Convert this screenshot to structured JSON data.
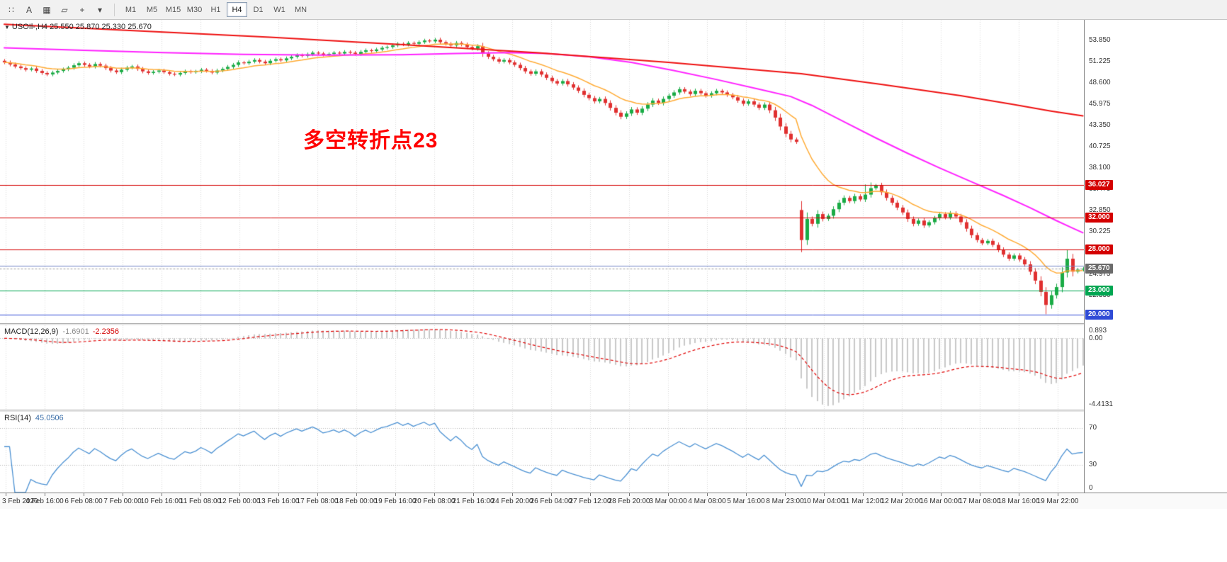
{
  "toolbar": {
    "tools": [
      {
        "id": "chart-grip",
        "glyph": "∷"
      },
      {
        "id": "text-tool",
        "glyph": "A"
      },
      {
        "id": "shapes-tool",
        "glyph": "▦"
      },
      {
        "id": "objects-tool",
        "glyph": "▱"
      },
      {
        "id": "crosshair-tool",
        "glyph": "+"
      },
      {
        "id": "more-dropdown",
        "glyph": "▾"
      }
    ],
    "timeframes": [
      "M1",
      "M5",
      "M15",
      "M30",
      "H1",
      "H4",
      "D1",
      "W1",
      "MN"
    ],
    "active_timeframe": "H4"
  },
  "chart": {
    "symbol_info": "USOIl-,H4 25.550 25.870 25.330 25.670",
    "symbol_dropdown_icon": "▼",
    "annotation": "多空转折点23",
    "current_price": "25.670",
    "colors": {
      "bull": "#1aab45",
      "bear": "#e03030",
      "ma_red": "#ee1111",
      "ma_magenta": "#ff22ff",
      "ma_orange": "#ffaa33",
      "hline_red": "#d40000",
      "hline_green": "#00a651",
      "hline_blue": "#2f4bd6",
      "hline_lightblue": "#7488c8",
      "current_line": "#999999",
      "tag_current_bg": "#6b6b6b",
      "macd_hist": "#c8c8c8",
      "macd_signal": "#e00000",
      "rsi_line": "#4a90d2",
      "grid": "#d9d9d9",
      "level_dotted": "#b8b8b8"
    },
    "price_axis_labels": [
      "53.850",
      "51.225",
      "48.600",
      "45.975",
      "43.350",
      "40.725",
      "38.100",
      "35.475",
      "32.850",
      "30.225",
      "27.600",
      "24.975",
      "22.350",
      "19.725"
    ],
    "price_tags": [
      {
        "text": "36.027",
        "value": 36.027,
        "color": "#d40000"
      },
      {
        "text": "32.000",
        "value": 32.0,
        "color": "#d40000"
      },
      {
        "text": "28.000",
        "value": 28.0,
        "color": "#d40000"
      },
      {
        "text": "25.670",
        "value": 25.67,
        "color": "#6b6b6b"
      },
      {
        "text": "23.000",
        "value": 23.0,
        "color": "#00a651"
      },
      {
        "text": "20.000",
        "value": 20.0,
        "color": "#2f4bd6"
      }
    ],
    "hlines": [
      {
        "price": 36.027,
        "color": "#d40000",
        "style": "solid"
      },
      {
        "price": 32.0,
        "color": "#d40000",
        "style": "solid"
      },
      {
        "price": 28.0,
        "color": "#d40000",
        "style": "solid"
      },
      {
        "price": 26.0,
        "color": "#7488c8",
        "style": "solid"
      },
      {
        "price": 23.0,
        "color": "#00a651",
        "style": "solid"
      },
      {
        "price": 20.0,
        "color": "#2f4bd6",
        "style": "solid"
      },
      {
        "price": 25.67,
        "color": "#999999",
        "style": "dot"
      }
    ],
    "time_labels": [
      "3 Feb 2020",
      "4 Feb 16:00",
      "6 Feb 08:00",
      "7 Feb 00:00",
      "10 Feb 16:00",
      "11 Feb 08:00",
      "12 Feb 00:00",
      "13 Feb 16:00",
      "17 Feb 08:00",
      "18 Feb 00:00",
      "19 Feb 16:00",
      "20 Feb 08:00",
      "21 Feb 16:00",
      "24 Feb 20:00",
      "26 Feb 04:00",
      "27 Feb 12:00",
      "28 Feb 20:00",
      "3 Mar 00:00",
      "4 Mar 08:00",
      "5 Mar 16:00",
      "8 Mar 23:00",
      "10 Mar 04:00",
      "11 Mar 12:00",
      "12 Mar 20:00",
      "16 Mar 00:00",
      "17 Mar 08:00",
      "18 Mar 16:00",
      "19 Mar 22:00"
    ]
  },
  "chart_data": {
    "type": "candlestick",
    "symbol": "USOIL",
    "timeframe": "H4",
    "ohlc_current": {
      "open": "25.550",
      "high": "25.870",
      "low": "25.330",
      "close": "25.670"
    },
    "price_range": {
      "max": 56.35,
      "min": 18.95
    },
    "first_open": 51.3,
    "closes": [
      51.1,
      50.85,
      50.6,
      50.4,
      50.2,
      50.35,
      50.05,
      49.8,
      49.62,
      49.85,
      50.05,
      50.25,
      50.45,
      50.75,
      51.0,
      50.8,
      50.6,
      50.9,
      50.7,
      50.4,
      50.1,
      49.9,
      50.2,
      50.45,
      50.6,
      50.3,
      50.0,
      49.8,
      49.95,
      50.1,
      49.9,
      49.7,
      49.6,
      49.8,
      50.0,
      49.9,
      50.0,
      50.2,
      50.05,
      49.85,
      50.1,
      50.3,
      50.55,
      50.8,
      51.1,
      51.0,
      51.2,
      51.4,
      51.2,
      51.0,
      51.3,
      51.5,
      51.35,
      51.6,
      51.8,
      52.0,
      51.9,
      52.1,
      52.3,
      52.2,
      52.05,
      52.15,
      52.3,
      52.2,
      52.4,
      52.3,
      52.15,
      52.4,
      52.6,
      52.5,
      52.7,
      52.9,
      53.0,
      53.2,
      53.4,
      53.3,
      53.5,
      53.4,
      53.6,
      53.8,
      53.7,
      53.9,
      53.6,
      53.4,
      53.2,
      53.5,
      53.3,
      53.0,
      52.8,
      53.1,
      52.2,
      51.8,
      51.5,
      51.2,
      51.4,
      51.1,
      50.8,
      50.4,
      50.0,
      49.7,
      50.0,
      49.6,
      49.2,
      48.8,
      48.5,
      48.8,
      48.4,
      48.0,
      47.6,
      47.1,
      46.7,
      46.3,
      46.6,
      46.1,
      45.5,
      44.9,
      44.4,
      44.8,
      45.3,
      44.9,
      45.4,
      45.9,
      46.4,
      46.1,
      46.6,
      47.0,
      47.4,
      47.8,
      47.5,
      47.2,
      47.6,
      47.3,
      47.0,
      47.3,
      47.6,
      47.4,
      47.1,
      46.8,
      46.4,
      46.0,
      46.3,
      45.9,
      45.5,
      45.9,
      45.2,
      44.3,
      43.2,
      42.3,
      41.6,
      41.3,
      29.2,
      31.8,
      31.2,
      32.4,
      31.8,
      32.2,
      33.0,
      33.8,
      34.4,
      34.0,
      34.6,
      34.2,
      34.8,
      35.6,
      35.9,
      35.1,
      34.4,
      33.8,
      33.2,
      32.6,
      31.8,
      31.2,
      31.6,
      31.0,
      31.4,
      31.9,
      32.4,
      32.0,
      32.5,
      32.1,
      31.4,
      30.6,
      29.8,
      29.2,
      28.8,
      29.1,
      28.6,
      28.0,
      27.4,
      26.9,
      27.3,
      26.8,
      26.2,
      25.3,
      24.2,
      22.8,
      21.2,
      22.4,
      23.4,
      25.2,
      26.9,
      25.3,
      25.55,
      25.67
    ],
    "overrides": {
      "150": {
        "o": 32.9,
        "h": 34.0,
        "l": 27.7
      },
      "151": {
        "h": 32.6,
        "l": 28.6
      },
      "162": {
        "h": 36.05
      },
      "163": {
        "h": 36.3
      },
      "196": {
        "l": 20.06
      },
      "200": {
        "h": 28.0
      },
      "203": {
        "o": 25.55,
        "h": 25.87,
        "l": 25.33,
        "c": 25.67
      }
    },
    "ma_red_keypoints": [
      [
        0,
        55.8
      ],
      [
        25,
        55.0
      ],
      [
        50,
        54.2
      ],
      [
        75,
        53.3
      ],
      [
        100,
        52.3
      ],
      [
        125,
        51.1
      ],
      [
        150,
        49.7
      ],
      [
        165,
        48.4
      ],
      [
        180,
        47.0
      ],
      [
        190,
        45.9
      ],
      [
        197,
        45.1
      ],
      [
        203,
        44.5
      ]
    ],
    "ma_magenta_keypoints": [
      [
        0,
        52.9
      ],
      [
        15,
        52.6
      ],
      [
        30,
        52.3
      ],
      [
        45,
        52.1
      ],
      [
        60,
        52.0
      ],
      [
        75,
        52.05
      ],
      [
        85,
        52.2
      ],
      [
        95,
        52.3
      ],
      [
        102,
        52.2
      ],
      [
        110,
        51.8
      ],
      [
        118,
        51.1
      ],
      [
        126,
        50.1
      ],
      [
        134,
        49.0
      ],
      [
        142,
        47.8
      ],
      [
        148,
        46.9
      ],
      [
        152,
        45.8
      ],
      [
        158,
        43.8
      ],
      [
        164,
        41.8
      ],
      [
        170,
        39.9
      ],
      [
        176,
        38.1
      ],
      [
        182,
        36.4
      ],
      [
        188,
        34.7
      ],
      [
        193,
        33.2
      ],
      [
        198,
        31.6
      ],
      [
        201,
        30.7
      ],
      [
        203,
        30.1
      ]
    ],
    "ma_orange": {
      "type": "ema",
      "period": 13
    },
    "macd": {
      "name": "MACD(12,26,9)",
      "main_value": "-1.6901",
      "signal_value": "-2.2356",
      "scale_top_label": "0.893",
      "scale_zero_label": "0.00",
      "scale_bottom_label": "-4.4131"
    },
    "rsi": {
      "name": "RSI(14)",
      "value": "45.0506",
      "levels": [
        70,
        30
      ],
      "scale_labels": [
        {
          "text": "70",
          "value": 70
        },
        {
          "text": "30",
          "value": 30
        },
        {
          "text": "0",
          "value": 0
        }
      ]
    }
  }
}
